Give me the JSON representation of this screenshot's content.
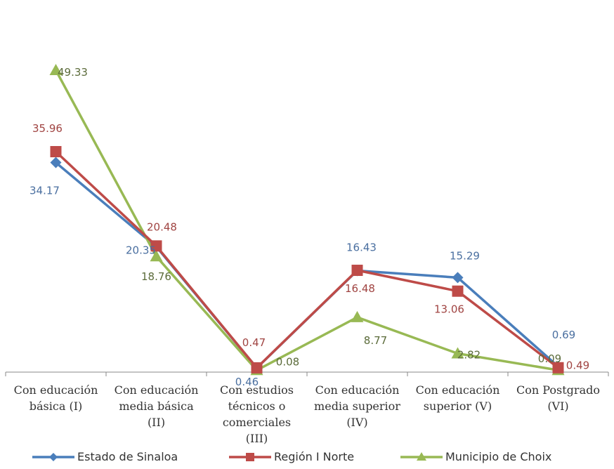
{
  "chart_data": {
    "type": "line",
    "title": "",
    "xlabel": "",
    "ylabel": "",
    "ylim": [
      0,
      50
    ],
    "grid": false,
    "legend_position": "bottom",
    "categories": [
      [
        "Con educación",
        "básica (I)"
      ],
      [
        "Con educación",
        "media básica",
        "(II)"
      ],
      [
        "Con estudios",
        "técnicos o",
        "comerciales",
        "(III)"
      ],
      [
        "Con educación",
        "media superior",
        "(IV)"
      ],
      [
        "Con educación",
        "superior (V)"
      ],
      [
        "Con Postgrado",
        "(VI)"
      ]
    ],
    "series": [
      {
        "name": "Estado de Sinaloa",
        "color": "#4a7ebb",
        "marker": "diamond",
        "values": [
          34.17,
          20.35,
          0.46,
          16.43,
          15.29,
          0.69
        ],
        "labels": [
          "34.17",
          "20.35",
          "0.46",
          "16.43",
          "15.29",
          "0.69"
        ]
      },
      {
        "name": "Región I Norte",
        "color": "#be4b48",
        "marker": "square",
        "values": [
          35.96,
          20.48,
          0.47,
          16.48,
          13.06,
          0.49
        ],
        "labels": [
          "35.96",
          "20.48",
          "0.47",
          "16.48",
          "13.06",
          "0.49"
        ]
      },
      {
        "name": "Municipio de Choix",
        "color": "#98b954",
        "marker": "triangle",
        "values": [
          49.33,
          18.76,
          0.08,
          8.77,
          2.82,
          0.09
        ],
        "labels": [
          "49.33",
          "18.76",
          "0.08",
          "8.77",
          "2.82",
          "0.09"
        ]
      }
    ]
  }
}
